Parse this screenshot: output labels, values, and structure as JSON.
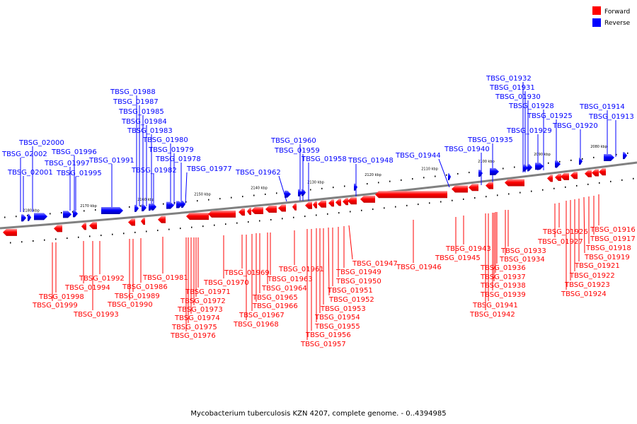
{
  "caption": "Mycobacterium tuberculosis KZN 4207, complete genome. - 0..4394985",
  "legend": [
    {
      "label": "Forward",
      "color": "#ff0000"
    },
    {
      "label": "Reverse",
      "color": "#0000ff"
    }
  ],
  "colors": {
    "forward": "#ff0000",
    "reverse": "#0000ff",
    "backbone": "#808080"
  },
  "ticks": [
    "2180 kbp",
    "2170 kbp",
    "2160 kbp",
    "2150 kbp",
    "2140 kbp",
    "2130 kbp",
    "2120 kbp",
    "2110 kbp",
    "2100 kbp",
    "2090 kbp",
    "2080 kbp"
  ],
  "reverse_genes": [
    "TBSG_02002",
    "TBSG_02001",
    "TBSG_02000",
    "TBSG_01997",
    "TBSG_01996",
    "TBSG_01995",
    "TBSG_01991",
    "TBSG_01988",
    "TBSG_01987",
    "TBSG_01985",
    "TBSG_01984",
    "TBSG_01983",
    "TBSG_01982",
    "TBSG_01980",
    "TBSG_01979",
    "TBSG_01978",
    "TBSG_01977",
    "TBSG_01962",
    "TBSG_01960",
    "TBSG_01959",
    "TBSG_01958",
    "TBSG_01948",
    "TBSG_01944",
    "TBSG_01940",
    "TBSG_01935",
    "TBSG_01932",
    "TBSG_01931",
    "TBSG_01930",
    "TBSG_01929",
    "TBSG_01928",
    "TBSG_01925",
    "TBSG_01920",
    "TBSG_01914",
    "TBSG_01913"
  ],
  "forward_genes": [
    "TBSG_01999",
    "TBSG_01998",
    "TBSG_01994",
    "TBSG_01993",
    "TBSG_01992",
    "TBSG_01990",
    "TBSG_01989",
    "TBSG_01986",
    "TBSG_01981",
    "TBSG_01976",
    "TBSG_01975",
    "TBSG_01974",
    "TBSG_01973",
    "TBSG_01972",
    "TBSG_01971",
    "TBSG_01970",
    "TBSG_01969",
    "TBSG_01968",
    "TBSG_01967",
    "TBSG_01966",
    "TBSG_01965",
    "TBSG_01964",
    "TBSG_01963",
    "TBSG_01961",
    "TBSG_01957",
    "TBSG_01956",
    "TBSG_01955",
    "TBSG_01954",
    "TBSG_01953",
    "TBSG_01952",
    "TBSG_01951",
    "TBSG_01950",
    "TBSG_01949",
    "TBSG_01947",
    "TBSG_01946",
    "TBSG_01945",
    "TBSG_01943",
    "TBSG_01942",
    "TBSG_01941",
    "TBSG_01939",
    "TBSG_01938",
    "TBSG_01937",
    "TBSG_01936",
    "TBSG_01934",
    "TBSG_01933",
    "TBSG_01927",
    "TBSG_01926",
    "TBSG_01924",
    "TBSG_01923",
    "TBSG_01922",
    "TBSG_01921",
    "TBSG_01919",
    "TBSG_01918",
    "TBSG_01917",
    "TBSG_01916"
  ]
}
